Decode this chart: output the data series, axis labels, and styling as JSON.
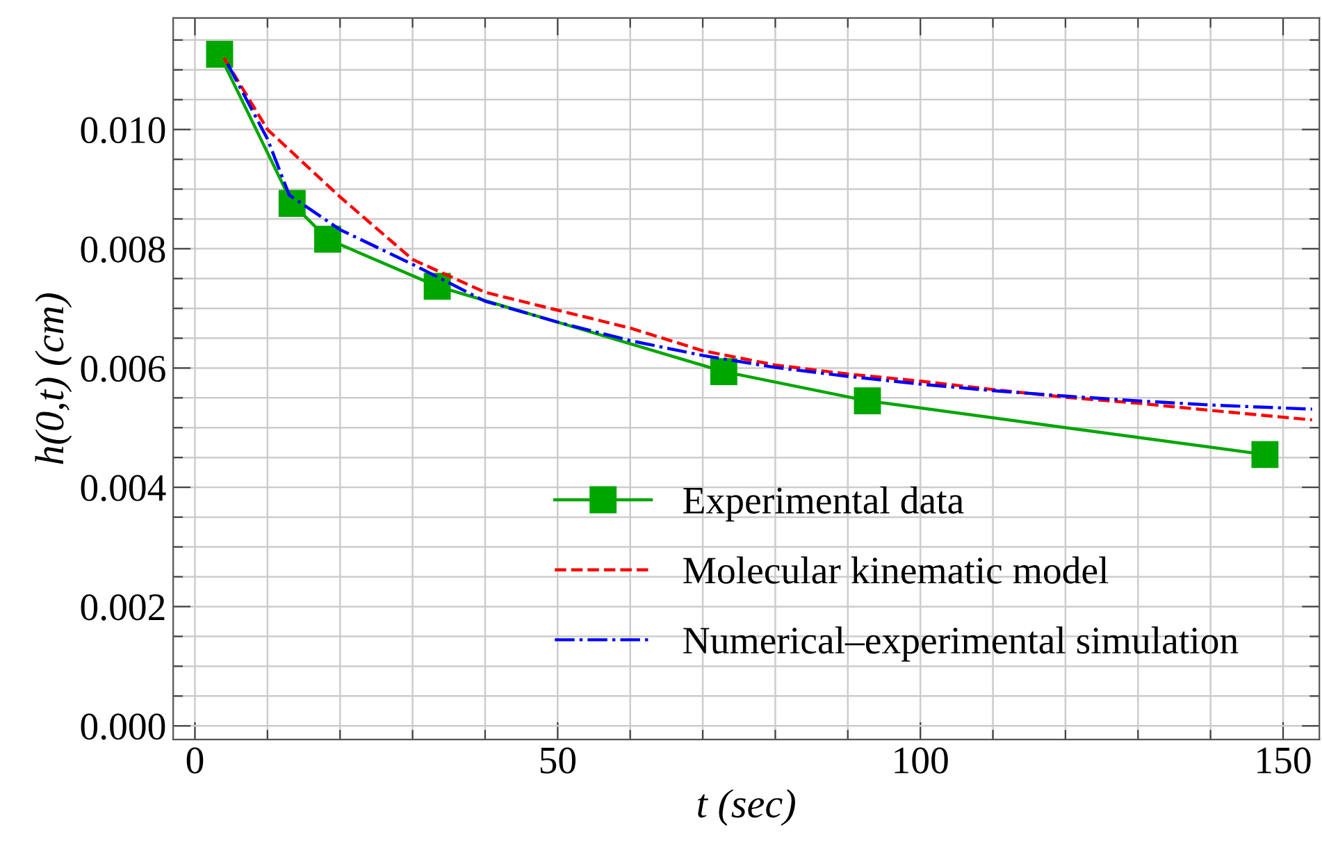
{
  "chart_data": {
    "type": "line",
    "xlabel": "t (sec)",
    "ylabel": "h(0,t) (cm)",
    "series": [
      {
        "name": "Experimental data",
        "color": "#00a600",
        "marker": "square",
        "line_style": "solid",
        "x": [
          3.4,
          13.4,
          18.3,
          33.4,
          72.9,
          92.7,
          147.5
        ],
        "values": [
          0.01126,
          0.00876,
          0.00816,
          0.00737,
          0.00594,
          0.00545,
          0.00455
        ]
      },
      {
        "name": "Molecular kinematic model",
        "color": "#ff0000",
        "marker": "none",
        "line_style": "dashed",
        "x": [
          4,
          10,
          20,
          30,
          40,
          50,
          60,
          70,
          80,
          90,
          100,
          110,
          120,
          130,
          140,
          154
        ],
        "values": [
          0.0112,
          0.01,
          0.00887,
          0.00782,
          0.00727,
          0.00697,
          0.00667,
          0.00629,
          0.00605,
          0.0059,
          0.00578,
          0.00564,
          0.00551,
          0.00541,
          0.00529,
          0.00513
        ]
      },
      {
        "name": "Numerical–experimental simulation",
        "color": "#0000ff",
        "marker": "none",
        "line_style": "dashdot",
        "x": [
          4.5,
          10,
          13,
          20,
          30,
          40,
          50,
          60,
          70,
          80,
          90,
          100,
          110,
          120,
          130,
          140,
          154
        ],
        "values": [
          0.0111,
          0.00984,
          0.0089,
          0.00832,
          0.00774,
          0.00712,
          0.00677,
          0.00646,
          0.00621,
          0.00601,
          0.00586,
          0.00573,
          0.00562,
          0.00553,
          0.00545,
          0.00538,
          0.00531
        ]
      }
    ],
    "xlim": [
      -3,
      155
    ],
    "ylim": [
      -0.00023,
      0.01187
    ],
    "xticks": [
      0,
      {
        "value": 10,
        "label": null
      },
      {
        "value": 20,
        "label": null
      },
      {
        "value": 30,
        "label": null
      },
      {
        "value": 40,
        "label": null
      },
      50,
      {
        "value": 60,
        "label": null
      },
      {
        "value": 70,
        "label": null
      },
      {
        "value": 80,
        "label": null
      },
      {
        "value": 90,
        "label": null
      },
      100,
      {
        "value": 110,
        "label": null
      },
      {
        "value": 120,
        "label": null
      },
      {
        "value": 130,
        "label": null
      },
      {
        "value": 140,
        "label": null
      },
      150
    ],
    "yticks": [
      {
        "value": 0,
        "label": "0.000"
      },
      {
        "value": 0.0005,
        "label": null
      },
      {
        "value": 0.001,
        "label": null
      },
      {
        "value": 0.0015,
        "label": null
      },
      {
        "value": 0.002,
        "label": "0.002"
      },
      {
        "value": 0.0025,
        "label": null
      },
      {
        "value": 0.003,
        "label": null
      },
      {
        "value": 0.0035,
        "label": null
      },
      {
        "value": 0.004,
        "label": "0.004"
      },
      {
        "value": 0.0045,
        "label": null
      },
      {
        "value": 0.005,
        "label": null
      },
      {
        "value": 0.0055,
        "label": null
      },
      {
        "value": 0.006,
        "label": "0.006"
      },
      {
        "value": 0.0065,
        "label": null
      },
      {
        "value": 0.007,
        "label": null
      },
      {
        "value": 0.0075,
        "label": null
      },
      {
        "value": 0.008,
        "label": "0.008"
      },
      {
        "value": 0.0085,
        "label": null
      },
      {
        "value": 0.009,
        "label": null
      },
      {
        "value": 0.0095,
        "label": null
      },
      {
        "value": 0.01,
        "label": "0.010"
      },
      {
        "value": 0.0105,
        "label": null
      },
      {
        "value": 0.011,
        "label": null
      },
      {
        "value": 0.0115,
        "label": null
      }
    ],
    "grid": true,
    "legend": "bottom right"
  }
}
